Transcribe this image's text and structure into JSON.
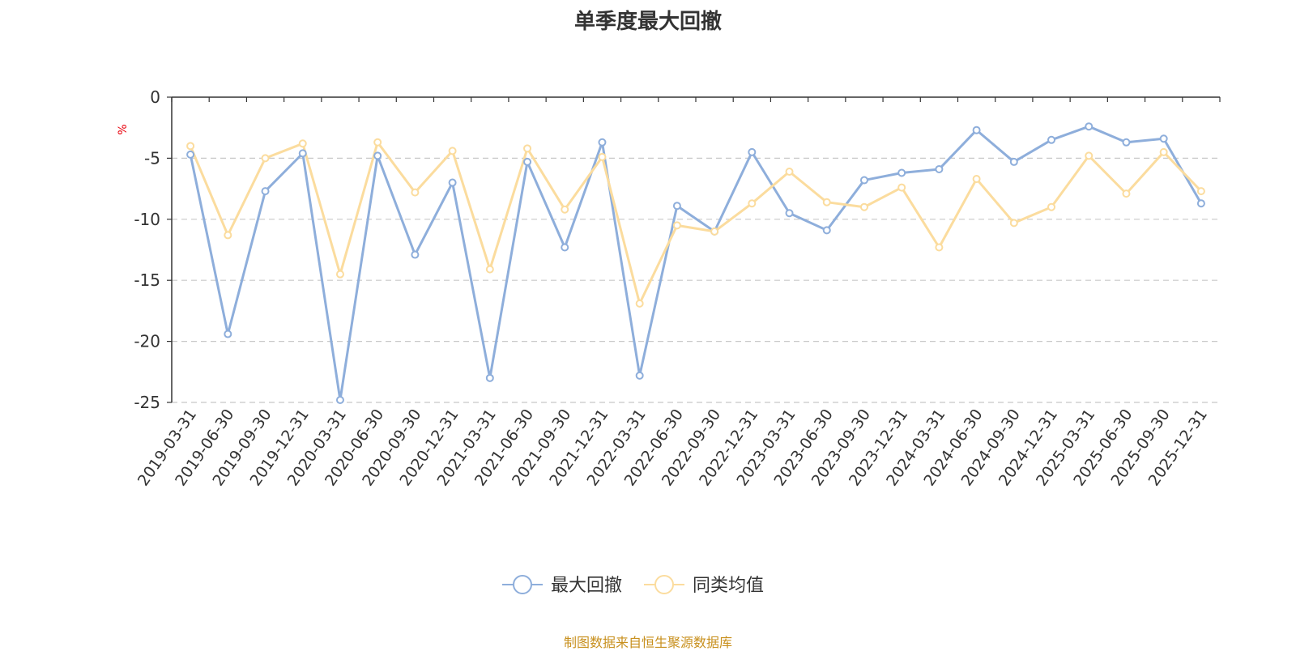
{
  "title": "单季度最大回撤",
  "source": "制图数据来自恒生聚源数据库",
  "chart_data": {
    "type": "line",
    "title": "单季度最大回撤",
    "ylabel": "%",
    "xlabel": "",
    "ylim": [
      -25,
      0
    ],
    "yticks": [
      0,
      -5,
      -10,
      -15,
      -20,
      -25
    ],
    "grid": true,
    "legend_position": "bottom-center",
    "categories": [
      "2019-03-31",
      "2019-06-30",
      "2019-09-30",
      "2019-12-31",
      "2020-03-31",
      "2020-06-30",
      "2020-09-30",
      "2020-12-31",
      "2021-03-31",
      "2021-06-30",
      "2021-09-30",
      "2021-12-31",
      "2022-03-31",
      "2022-06-30",
      "2022-09-30",
      "2022-12-31",
      "2023-03-31",
      "2023-06-30",
      "2023-09-30",
      "2023-12-31",
      "2024-03-31",
      "2024-06-30",
      "2024-09-30",
      "2024-12-31",
      "2025-03-31",
      "2025-06-30",
      "2025-09-30",
      "2025-12-31"
    ],
    "series": [
      {
        "name": "最大回撤",
        "color": "#8eaedb",
        "values": [
          -4.7,
          -19.4,
          -7.7,
          -4.6,
          -24.8,
          -4.8,
          -12.9,
          -7.0,
          -23.0,
          -5.3,
          -12.3,
          -3.7,
          -22.8,
          -8.9,
          -11.0,
          -4.5,
          -9.5,
          -10.9,
          -6.8,
          -6.2,
          -5.9,
          -2.7,
          -5.3,
          -3.5,
          -2.4,
          -3.7,
          -3.4,
          -8.7
        ]
      },
      {
        "name": "同类均值",
        "color": "#fbdc9e",
        "values": [
          -4.0,
          -11.3,
          -5.0,
          -3.8,
          -14.5,
          -3.7,
          -7.8,
          -4.4,
          -14.1,
          -4.2,
          -9.2,
          -4.9,
          -16.9,
          -10.5,
          -11.0,
          -8.7,
          -6.1,
          -8.6,
          -9.0,
          -7.4,
          -12.3,
          -6.7,
          -10.3,
          -9.0,
          -4.8,
          -7.9,
          -4.5,
          -7.7
        ]
      }
    ]
  }
}
